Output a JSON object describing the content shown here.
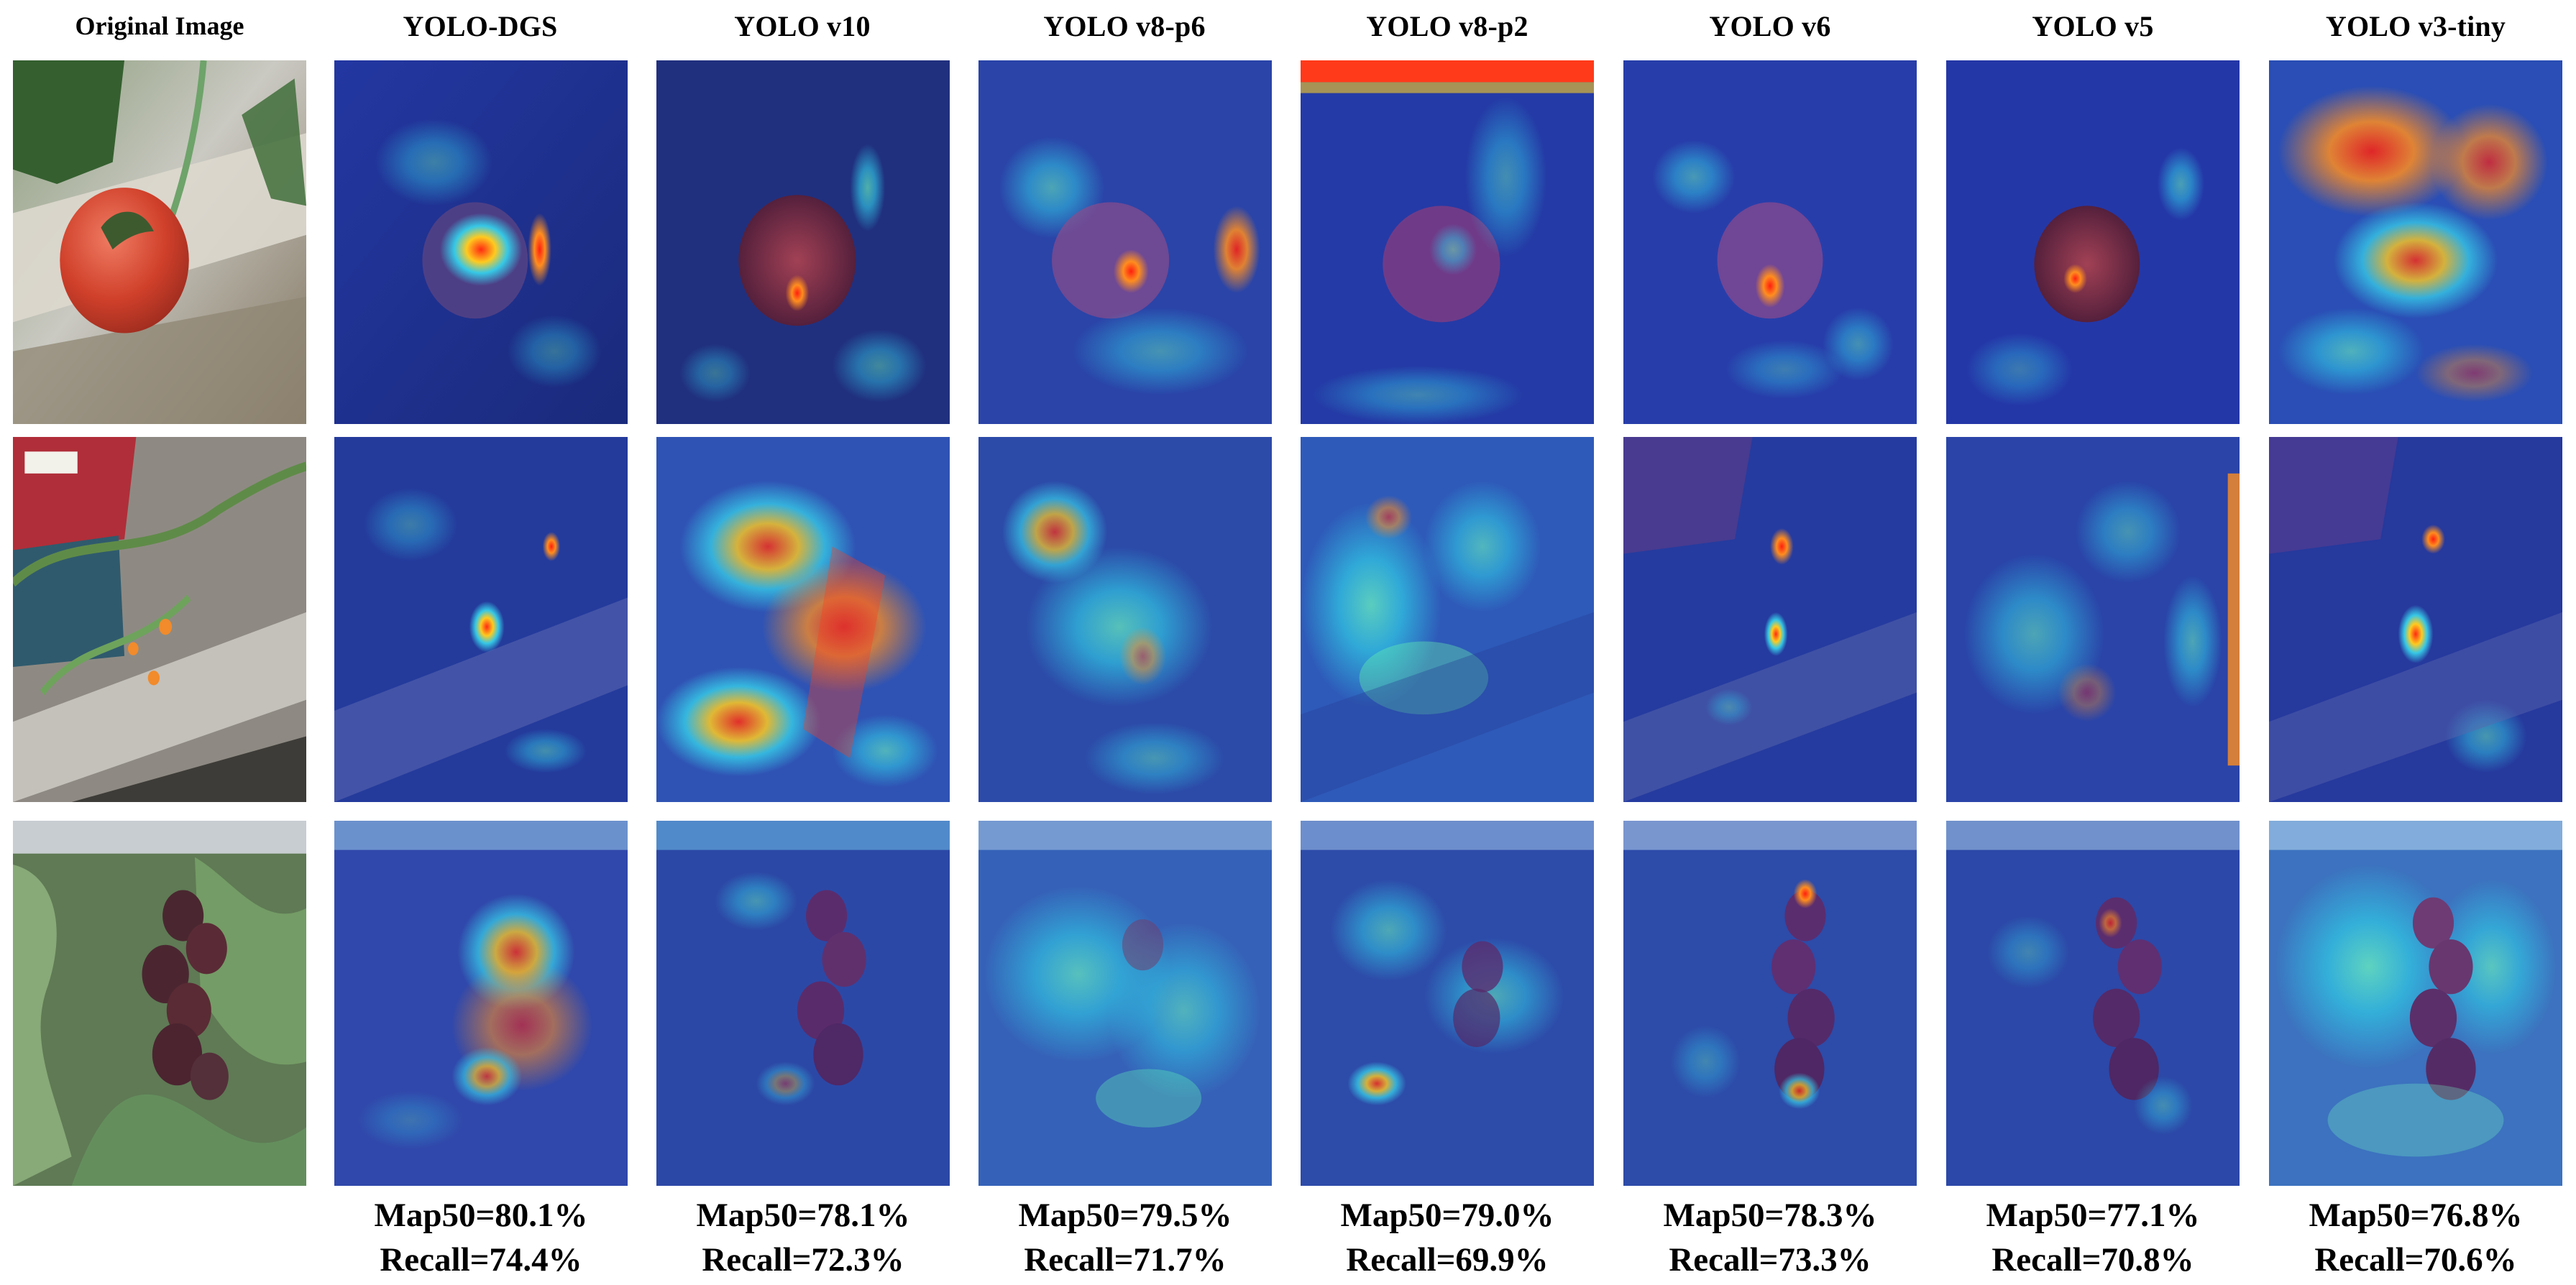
{
  "figure": {
    "columns": [
      {
        "key": "original",
        "label": "Original Image"
      },
      {
        "key": "yolo_dgs",
        "label": "YOLO-DGS",
        "map50": "Map50=80.1%",
        "recall": "Recall=74.4%"
      },
      {
        "key": "yolo_v10",
        "label": "YOLO v10",
        "map50": "Map50=78.1%",
        "recall": "Recall=72.3%"
      },
      {
        "key": "yolo_v8_p6",
        "label": "YOLO v8-p6",
        "map50": "Map50=79.5%",
        "recall": "Recall=71.7%"
      },
      {
        "key": "yolo_v8_p2",
        "label": "YOLO v8-p2",
        "map50": "Map50=79.0%",
        "recall": "Recall=69.9%"
      },
      {
        "key": "yolo_v6",
        "label": "YOLO v6",
        "map50": "Map50=78.3%",
        "recall": "Recall=73.3%"
      },
      {
        "key": "yolo_v5",
        "label": "YOLO v5",
        "map50": "Map50=77.1%",
        "recall": "Recall=70.8%"
      },
      {
        "key": "yolo_v3_tiny",
        "label": "YOLO v3-tiny",
        "map50": "Map50=76.8%",
        "recall": "Recall=70.6%"
      }
    ],
    "colors": {
      "heatmap_low": "#1d2c8f",
      "heatmap_mid": "#36c8e6",
      "heatmap_high": "#ff2a12",
      "tomato_red": "#d0402a",
      "tomato_dark": "#4a2730",
      "foliage_green": "#4f8c43"
    }
  }
}
